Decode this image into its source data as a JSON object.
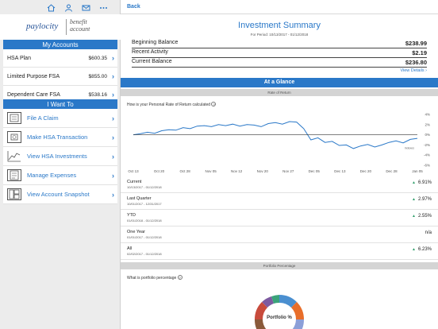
{
  "top_icons": [
    "home-icon",
    "user-icon",
    "mail-icon",
    "more-icon"
  ],
  "logo": {
    "brand": "paylocity",
    "product_line1": "benefit",
    "product_line2": "account"
  },
  "my_accounts": {
    "title": "My Accounts",
    "items": [
      {
        "name": "HSA Plan",
        "amount": "$600.35"
      },
      {
        "name": "Limited Purpose FSA",
        "amount": "$855.00"
      },
      {
        "name": "Dependent Care FSA",
        "amount": "$538.16"
      }
    ]
  },
  "i_want_to": {
    "title": "I Want To",
    "items": [
      {
        "label": "File A Claim",
        "icon": "file-claim-icon"
      },
      {
        "label": "Make HSA Transaction",
        "icon": "transaction-icon"
      },
      {
        "label": "View HSA Investments",
        "icon": "investments-icon"
      },
      {
        "label": "Manage Expenses",
        "icon": "expenses-icon"
      },
      {
        "label": "View Account Snapshot",
        "icon": "snapshot-icon"
      }
    ]
  },
  "nav": {
    "back_label": "Back"
  },
  "summary": {
    "title": "Investment Summary",
    "period": "For Period: 10/13/2017 - 01/12/2018",
    "rows": [
      {
        "label": "Beginning Balance",
        "value": "$238.99"
      },
      {
        "label": "Recent Activity",
        "value": "$2.19"
      },
      {
        "label": "Current Balance",
        "value": "$236.80"
      }
    ],
    "view_details": "View Details"
  },
  "at_a_glance": {
    "title": "At a Glance",
    "ror_header": "Rate of Return",
    "ror_question": "How is your Personal Rate of Return calculated",
    "portfolio_header": "Portfolio Percentage",
    "portfolio_question": "What is portfolio percentage",
    "portfolio_center_label": "Portfolio %"
  },
  "chart_data": {
    "type": "line",
    "x_ticks": [
      "Oct 13",
      "Oct 20",
      "Oct 28",
      "Nov 05",
      "Nov 12",
      "Nov 20",
      "Nov 27",
      "Dec 05",
      "Dec 13",
      "Dec 20",
      "Dec 28",
      "Jan 05"
    ],
    "y_ticks": [
      "4%",
      "2%",
      "0%",
      "-2%",
      "-4%",
      "-6%"
    ],
    "ylim": [
      -6,
      4
    ],
    "annotation": "Indexes",
    "series": [
      {
        "color": "#2a78c8",
        "values": [
          0,
          0.2,
          0.5,
          0.3,
          0.8,
          1.0,
          0.9,
          1.4,
          1.2,
          1.7,
          1.8,
          1.6,
          2.0,
          1.8,
          2.1,
          1.7,
          2.0,
          1.9,
          1.6,
          2.2,
          2.4,
          2.1,
          2.6,
          2.5,
          1.2,
          -1.0,
          -0.6,
          -1.5,
          -1.3,
          -2.1,
          -2.0,
          -2.7,
          -2.2,
          -1.9,
          -2.4,
          -2.0,
          -1.5,
          -1.2,
          -1.6,
          -0.9,
          -0.7
        ]
      },
      {
        "color": "#333333",
        "values": [
          0,
          0
        ]
      }
    ]
  },
  "performance": [
    {
      "label": "Current",
      "dates": "10/13/2017 - 01/12/2018",
      "value": "6.91%",
      "up": true
    },
    {
      "label": "Last Quarter",
      "dates": "10/01/2017 - 12/31/2017",
      "value": "2.97%",
      "up": true
    },
    {
      "label": "YTD",
      "dates": "01/01/2018 - 01/12/2018",
      "value": "2.55%",
      "up": true
    },
    {
      "label": "One Year",
      "dates": "01/01/2017 - 01/12/2018",
      "value": "n/a",
      "up": false
    },
    {
      "label": "All",
      "dates": "02/02/2017 - 01/12/2018",
      "value": "6.23%",
      "up": true
    }
  ],
  "colors": {
    "accent": "#2a78c8",
    "positive": "#2e9e6a"
  }
}
